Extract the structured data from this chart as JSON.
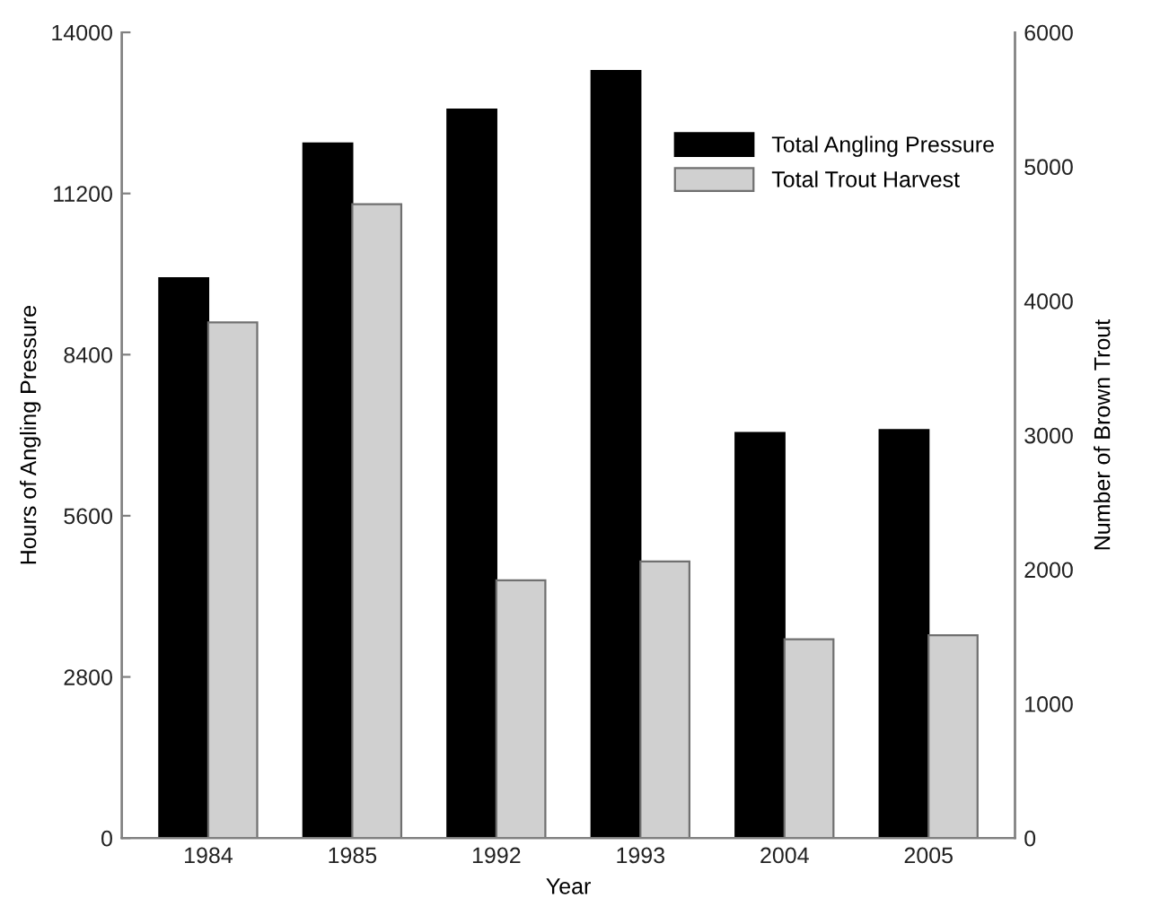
{
  "chart_data": {
    "type": "bar",
    "xlabel": "Year",
    "ylabel": "Hours of Angling Pressure",
    "y2label": "Number of Brown Trout",
    "categories": [
      "1984",
      "1985",
      "1992",
      "1993",
      "2004",
      "2005"
    ],
    "series": [
      {
        "name": "Total Angling Pressure",
        "color": "#000000",
        "values": [
          9730,
          12070,
          12660,
          13330,
          7040,
          7090
        ]
      },
      {
        "name": "Total Trout Harvest",
        "color": "#d0d0d0",
        "axis": "y2",
        "values": [
          3840,
          4720,
          1920,
          2060,
          1480,
          1510
        ]
      }
    ],
    "ylim": [
      0,
      14000
    ],
    "yticks": [
      0,
      2800,
      5600,
      8400,
      11200,
      14000
    ],
    "y2lim": [
      0,
      6000
    ],
    "y2ticks": [
      0,
      1000,
      2000,
      3000,
      4000,
      5000,
      6000
    ],
    "legend": "top right",
    "grid": false
  }
}
